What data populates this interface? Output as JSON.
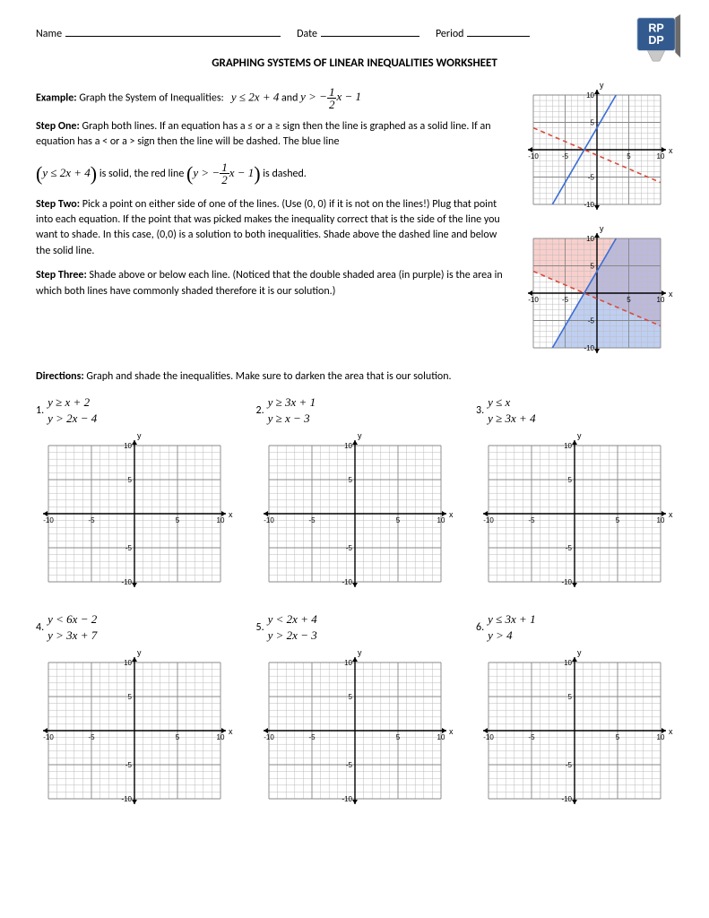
{
  "header": {
    "name_label": "Name",
    "date_label": "Date",
    "period_label": "Period",
    "name_blank_width": 240,
    "date_blank_width": 110,
    "period_blank_width": 70
  },
  "title": "GRAPHING SYSTEMS OF LINEAR INEQUALITIES WORKSHEET",
  "example": {
    "label": "Example:",
    "text": " Graph the System of Inequalities:",
    "eq1_html": "y ≤ 2x + 4",
    "and": " and ",
    "eq2_prefix": "y > −",
    "eq2_frac_n": "1",
    "eq2_frac_d": "2",
    "eq2_suffix": "x − 1"
  },
  "step1": {
    "label": "Step One:",
    "text1": " Graph both lines.  If an equation has a ≤ or a ≥ sign then the line is graphed as a solid line.  If an equation has a < or a > sign then the line will be dashed.  The blue line",
    "paren_eq": "y ≤ 2x + 4",
    "mid": " is solid, the red line ",
    "paren_eq2_prefix": "y > −",
    "paren_eq2_frac_n": "1",
    "paren_eq2_frac_d": "2",
    "paren_eq2_suffix": "x − 1",
    "end": " is dashed."
  },
  "step2": {
    "label": "Step Two:",
    "text": " Pick a point on either side of one of the lines.  (Use (0, 0) if it is not on the lines!) Plug that point into each equation.  If the point that was picked makes the inequality correct that is the side of the line you want to shade. In this case, (0,0) is a solution to both inequalities.  Shade above the dashed line and below the solid line."
  },
  "step3": {
    "label": "Step Three:",
    "text": " Shade above or below each line.  (Noticed that the double shaded area (in purple) is the area in which both lines have commonly shaded therefore it is our solution.)"
  },
  "directions": {
    "label": "Directions:",
    "text": " Graph and shade the inequalities.  Make sure to darken the area that is our solution."
  },
  "problems": [
    {
      "num": "1.",
      "eq1": "y ≥ x + 2",
      "eq2": "y > 2x − 4"
    },
    {
      "num": "2.",
      "eq1": "y ≥ 3x + 1",
      "eq2": "y ≥ x − 3"
    },
    {
      "num": "3.",
      "eq1": "y ≤ x",
      "eq2": "y ≥ 3x + 4"
    },
    {
      "num": "4.",
      "eq1": "y < 6x − 2",
      "eq2": "y > 3x + 7"
    },
    {
      "num": "5.",
      "eq1": "y < 2x + 4",
      "eq2": "y > 2x − 3"
    },
    {
      "num": "6.",
      "eq1": "y ≤ 3x + 1",
      "eq2": "y > 4"
    }
  ],
  "grid": {
    "xmin": -10,
    "xmax": 10,
    "ymin": -10,
    "ymax": 10,
    "major": 5,
    "minor": 1,
    "tick_labels": [
      "-10",
      "-5",
      "5",
      "10"
    ],
    "x_label": "x",
    "y_label": "y"
  },
  "example_chart": {
    "blue_line": {
      "slope": 2,
      "intercept": 4,
      "color": "#3b6fd6",
      "style": "solid",
      "width": 1.6
    },
    "red_line": {
      "slope": -0.5,
      "intercept": -1,
      "color": "#d94a3b",
      "style": "dashed",
      "width": 1.6
    },
    "shade_blue": {
      "slope": 2,
      "intercept": 4,
      "direction": "below",
      "color": "#8aa8e8",
      "opacity": 0.55
    },
    "shade_red": {
      "slope": -0.5,
      "intercept": -1,
      "direction": "above",
      "color": "#f2a7a3",
      "opacity": 0.55
    }
  },
  "logo": {
    "bg": "#335a8f",
    "ribbon": "#6b6b6b",
    "text_top": "RP",
    "text_bot": "DP",
    "text_color": "#fff",
    "outline": "#c9d6e8"
  }
}
